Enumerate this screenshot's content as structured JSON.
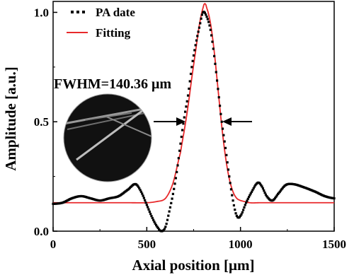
{
  "chart_data": {
    "type": "line",
    "xlabel": "Axial position [μm]",
    "ylabel": "Amplitude [a.u.]",
    "xlim": [
      0,
      1500
    ],
    "ylim": [
      0,
      1.05
    ],
    "xticks": [
      0,
      500,
      1000,
      1500
    ],
    "xtick_labels": [
      "0",
      "500",
      "1000",
      "1500"
    ],
    "yticks": [
      0.0,
      0.5,
      1.0
    ],
    "ytick_labels": [
      "0.0",
      "0.5",
      "1.0"
    ],
    "grid": false,
    "legend_position": "top-left",
    "annotation": "FWHM=140.36 μm",
    "inset": "circular inset image showing bright crossing lines on a dark background",
    "colors": {
      "pa": "#000000",
      "fit": "#e8292b"
    },
    "series": [
      {
        "name": "PA date",
        "style": "scatter",
        "x": [
          0,
          50,
          100,
          150,
          200,
          250,
          300,
          350,
          400,
          440,
          470,
          500,
          530,
          560,
          580,
          600,
          620,
          640,
          660,
          680,
          700,
          720,
          740,
          760,
          780,
          800,
          820,
          840,
          860,
          880,
          900,
          920,
          940,
          960,
          980,
          1000,
          1030,
          1060,
          1090,
          1110,
          1140,
          1170,
          1200,
          1240,
          1280,
          1340,
          1400,
          1450,
          1500
        ],
        "y": [
          0.125,
          0.13,
          0.15,
          0.16,
          0.15,
          0.14,
          0.15,
          0.16,
          0.19,
          0.215,
          0.18,
          0.12,
          0.06,
          0.015,
          0.0,
          0.02,
          0.09,
          0.17,
          0.27,
          0.4,
          0.52,
          0.62,
          0.75,
          0.85,
          0.93,
          1.0,
          0.98,
          0.92,
          0.8,
          0.65,
          0.5,
          0.38,
          0.25,
          0.14,
          0.07,
          0.07,
          0.13,
          0.18,
          0.22,
          0.21,
          0.16,
          0.14,
          0.17,
          0.21,
          0.215,
          0.2,
          0.18,
          0.16,
          0.15
        ]
      },
      {
        "name": "Fitting",
        "style": "line",
        "x": [
          0,
          100,
          200,
          300,
          400,
          500,
          550,
          600,
          640,
          680,
          700,
          720,
          740,
          760,
          780,
          800,
          810,
          820,
          840,
          860,
          880,
          900,
          920,
          940,
          960,
          980,
          1000,
          1050,
          1100,
          1200,
          1300,
          1400,
          1500
        ],
        "y": [
          0.13,
          0.13,
          0.13,
          0.13,
          0.13,
          0.13,
          0.135,
          0.15,
          0.22,
          0.36,
          0.46,
          0.57,
          0.7,
          0.82,
          0.94,
          1.02,
          1.04,
          1.02,
          0.95,
          0.82,
          0.65,
          0.48,
          0.34,
          0.24,
          0.18,
          0.15,
          0.14,
          0.13,
          0.13,
          0.13,
          0.13,
          0.13,
          0.13
        ]
      }
    ]
  }
}
